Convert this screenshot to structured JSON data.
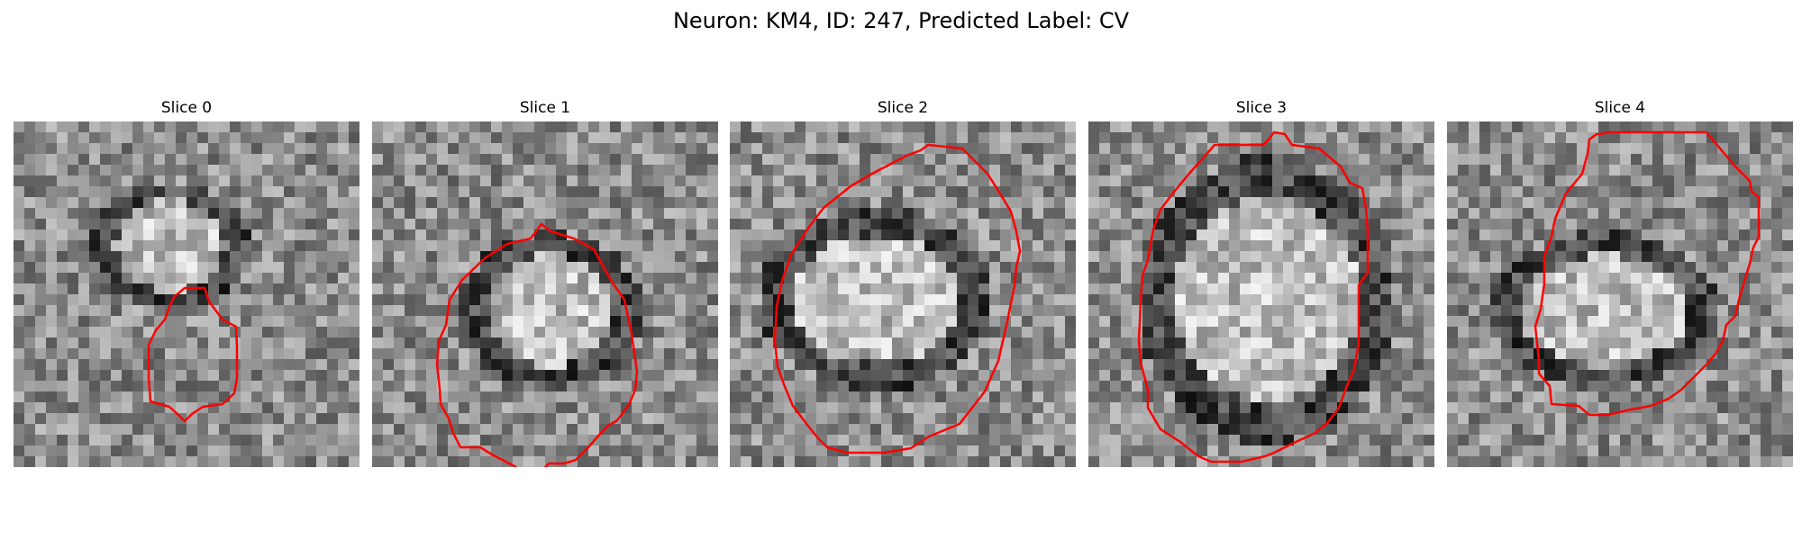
{
  "figure": {
    "title": "Neuron: KM4, ID: 247, Predicted Label: CV"
  },
  "panels": [
    {
      "title": "Slice 0"
    },
    {
      "title": "Slice 1"
    },
    {
      "title": "Slice 2"
    },
    {
      "title": "Slice 3"
    },
    {
      "title": "Slice 4"
    }
  ],
  "colors": {
    "contour": "#ff0000",
    "background": "#ffffff"
  },
  "image": {
    "colormap": "grayscale",
    "grid_size": 32
  }
}
